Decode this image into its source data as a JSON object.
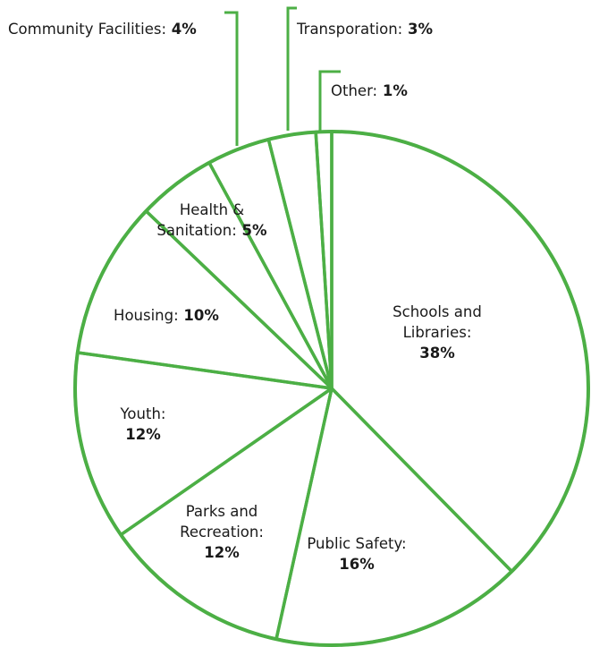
{
  "chart_data": {
    "type": "pie",
    "title": "",
    "colors": {
      "stroke": "#4caf45",
      "fill": "#ffffff",
      "text": "#1a1a1a"
    },
    "slices": [
      {
        "id": "schools",
        "label": "Schools and Libraries:",
        "label_lines": [
          "Schools and",
          "Libraries:"
        ],
        "value_text": "38%",
        "value": 38
      },
      {
        "id": "public-safety",
        "label": "Public Safety:",
        "label_lines": [
          "Public Safety:"
        ],
        "value_text": "16%",
        "value": 16
      },
      {
        "id": "parks",
        "label": "Parks and Recreation:",
        "label_lines": [
          "Parks and",
          "Recreation:"
        ],
        "value_text": "12%",
        "value": 12
      },
      {
        "id": "youth",
        "label": "Youth:",
        "label_lines": [
          "Youth:"
        ],
        "value_text": "12%",
        "value": 12
      },
      {
        "id": "housing",
        "label": "Housing:",
        "label_lines": [
          "Housing:"
        ],
        "value_text": "10%",
        "value": 10
      },
      {
        "id": "health",
        "label": "Health & Sanitation:",
        "label_lines": [
          "Health &",
          "Sanitation:"
        ],
        "value_text": "5%",
        "value": 5
      },
      {
        "id": "community",
        "label": "Community Facilities:",
        "label_lines": [
          "Community Facilities:"
        ],
        "value_text": "4%",
        "value": 4
      },
      {
        "id": "transportation",
        "label": "Transporation:",
        "label_lines": [
          "Transporation:"
        ],
        "value_text": "3%",
        "value": 3
      },
      {
        "id": "other",
        "label": "Other:",
        "label_lines": [
          "Other:"
        ],
        "value_text": "1%",
        "value": 1
      }
    ]
  }
}
